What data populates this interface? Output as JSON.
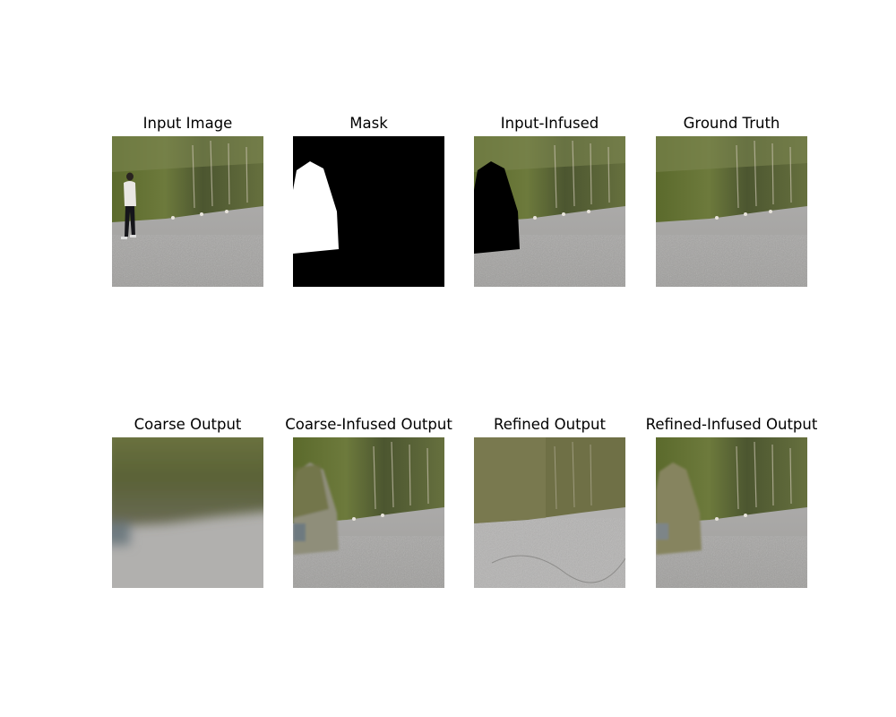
{
  "figure": {
    "rows": [
      {
        "panels": [
          {
            "title": "Input Image",
            "content": "scene-with-person"
          },
          {
            "title": "Mask",
            "content": "mask"
          },
          {
            "title": "Input-Infused",
            "content": "masked-input"
          },
          {
            "title": "Ground Truth",
            "content": "clean-scene"
          }
        ]
      },
      {
        "panels": [
          {
            "title": "Coarse Output",
            "content": "coarse-blur"
          },
          {
            "title": "Coarse-Infused Output",
            "content": "coarse-infused"
          },
          {
            "title": "Refined Output",
            "content": "refined"
          },
          {
            "title": "Refined-Infused Output",
            "content": "refined-infused"
          }
        ]
      }
    ]
  },
  "colors": {
    "foliage_dark": "#4d5a2e",
    "foliage_mid": "#6f7a45",
    "gravel": "#a9a9a9",
    "mask_white": "#ffffff",
    "mask_black": "#000000"
  }
}
